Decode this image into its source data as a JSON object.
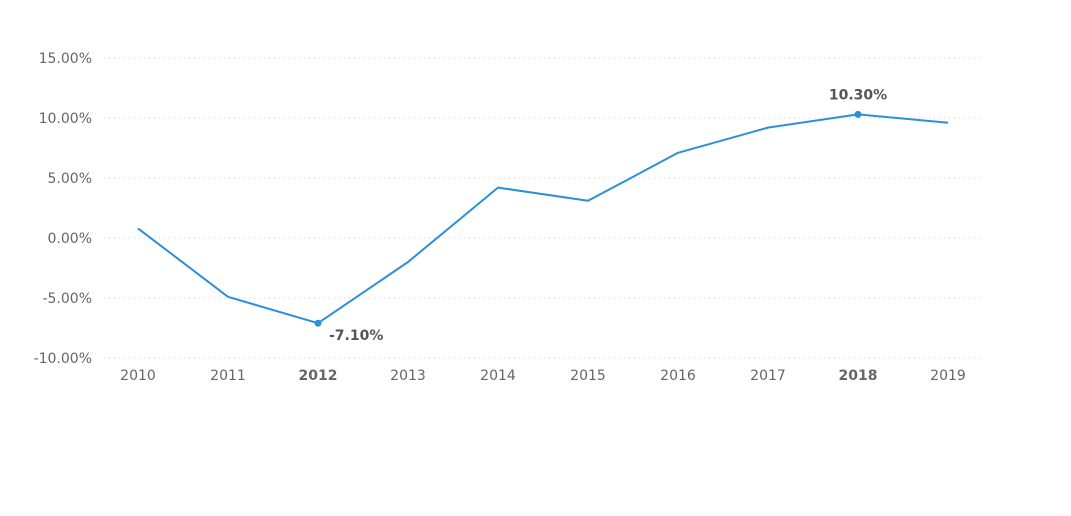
{
  "chart_data": {
    "type": "line",
    "title": "",
    "xlabel": "",
    "ylabel": "",
    "x": [
      "2010",
      "2011",
      "2012",
      "2013",
      "2014",
      "2015",
      "2016",
      "2017",
      "2018",
      "2019"
    ],
    "series": [
      {
        "values": [
          0.8,
          -4.9,
          -7.1,
          -2.0,
          4.2,
          3.1,
          7.1,
          9.2,
          10.3,
          9.6
        ]
      }
    ],
    "ylim": [
      -10,
      15
    ],
    "y_ticks": [
      15,
      10,
      5,
      0,
      -5,
      -10
    ],
    "y_tick_labels": [
      "15.00%",
      "10.00%",
      "5.00%",
      "0.00%",
      "-5.00%",
      "-10.00%"
    ],
    "highlighted_categories": [
      "2012",
      "2018"
    ],
    "data_labels": [
      {
        "category": "2012",
        "text": "-7.10%",
        "position": "below-right"
      },
      {
        "category": "2018",
        "text": "10.30%",
        "position": "above"
      }
    ],
    "grid": true,
    "legend": "none",
    "colors": {
      "line": "#2b8fd9",
      "grid": "#d0d0d0",
      "tick_text": "#666666",
      "data_label": "#555555"
    }
  }
}
